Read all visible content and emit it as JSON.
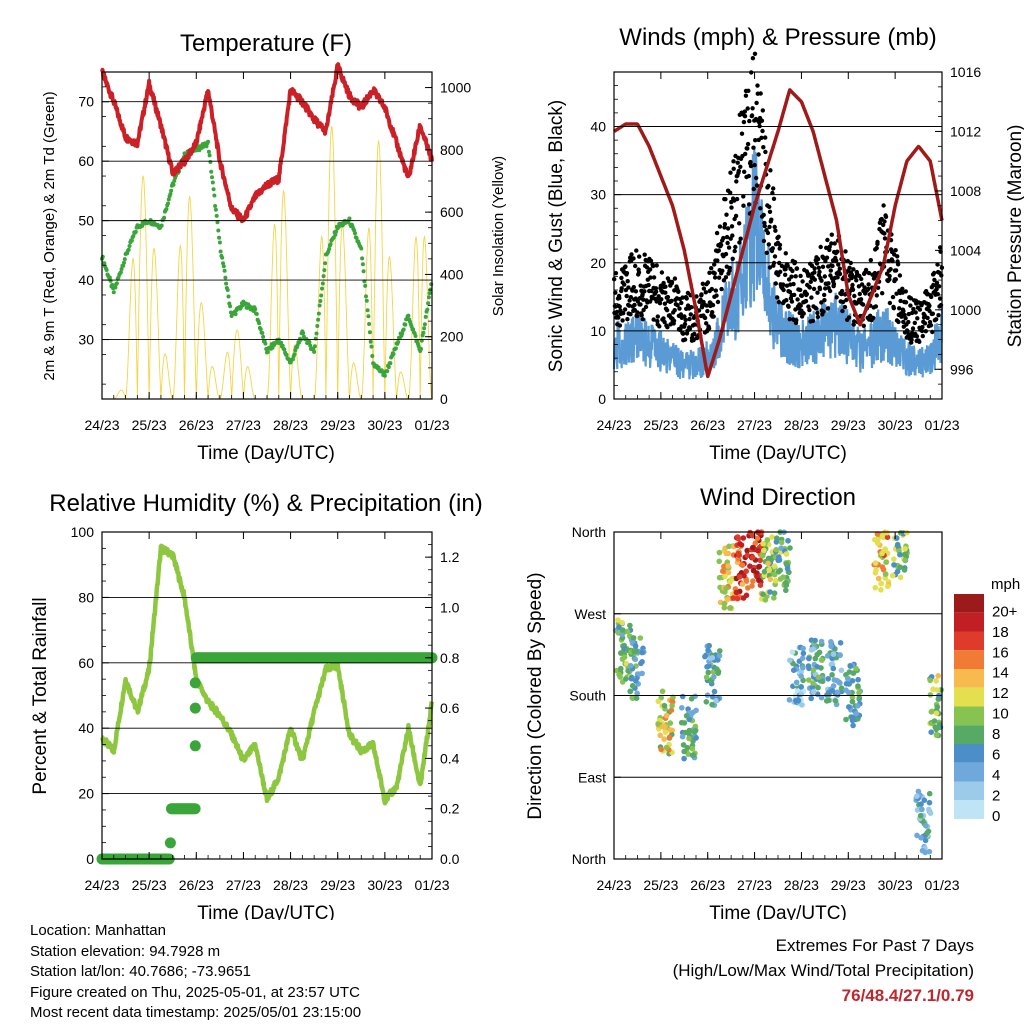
{
  "x_tick_labels": [
    "24/23",
    "25/23",
    "26/23",
    "27/23",
    "28/23",
    "29/23",
    "30/23",
    "01/23"
  ],
  "panels": {
    "temperature": {
      "title": "Temperature (F)",
      "xlabel": "Time (Day/UTC)",
      "ylabel_left": "2m & 9m T (Red, Orange) & 2m Td (Green)",
      "ylabel_right": "Solar Insolation (Yellow)"
    },
    "winds": {
      "title": "Winds (mph) & Pressure (mb)",
      "xlabel": "Time (Day/UTC)",
      "ylabel_left": "Sonic Wind & Gust (Blue, Black)",
      "ylabel_right": "Station Pressure (Maroon)"
    },
    "humidity": {
      "title": "Relative Humidity (%) & Precipitation (in)",
      "xlabel": "Time (Day/UTC)",
      "ylabel_left": "Percent & Total Rainfall"
    },
    "direction": {
      "title": "Wind Direction",
      "xlabel": "Time (Day/UTC)",
      "ylabel_left": "Direction (Colored By Speed)",
      "colorbar_title": "mph",
      "colorbar_labels": [
        "20+",
        "18",
        "16",
        "14",
        "12",
        "10",
        "8",
        "6",
        "4",
        "2",
        "0"
      ]
    }
  },
  "colors": {
    "temp_red": "#cc2027",
    "dewpoint_green": "#3aa63a",
    "solar_yellow": "#f5d547",
    "wind_blue": "#5b9bd5",
    "gust_black": "#000000",
    "pressure_maroon": "#a11a1a",
    "rh_lightgreen": "#8dc63f",
    "precip_green": "#3aa63a",
    "speed_scale": [
      "#bfe4f5",
      "#9ccbea",
      "#6fa9db",
      "#4c8ec7",
      "#57aa63",
      "#86c351",
      "#e3df4f",
      "#f6ba4f",
      "#f17a35",
      "#de3b2a",
      "#c11f24",
      "#9c1a1a"
    ]
  },
  "chart_data": [
    {
      "type": "line",
      "title": "Temperature (F)",
      "xlabel": "Time (Day/UTC)",
      "ylabel": "2m & 9m T (Red, Orange) & 2m Td (Green)",
      "y2label": "Solar Insolation (Yellow)",
      "x_ticks": [
        "24/23",
        "25/23",
        "26/23",
        "27/23",
        "28/23",
        "29/23",
        "30/23",
        "01/23"
      ],
      "ylim": [
        20,
        75
      ],
      "y_ticks": [
        30,
        40,
        50,
        60,
        70
      ],
      "y2lim": [
        0,
        1050
      ],
      "y2_ticks": [
        0,
        200,
        400,
        600,
        800,
        1000
      ],
      "x": [
        0,
        0.25,
        0.5,
        0.75,
        1,
        1.25,
        1.5,
        1.75,
        2,
        2.25,
        2.5,
        2.75,
        3,
        3.25,
        3.5,
        3.75,
        4,
        4.25,
        4.5,
        4.75,
        5,
        5.25,
        5.5,
        5.75,
        6,
        6.25,
        6.5,
        6.75,
        7
      ],
      "series": [
        {
          "name": "2m & 9m T",
          "values": [
            75,
            70,
            64,
            63,
            73,
            66,
            58,
            60,
            63,
            72,
            60,
            52,
            50,
            54,
            56,
            57,
            72,
            70,
            67,
            65,
            76,
            71,
            69,
            72,
            69,
            63,
            57,
            66,
            60
          ]
        },
        {
          "name": "2m Td",
          "values": [
            44,
            38,
            44,
            49,
            50,
            49,
            56,
            61,
            62,
            63,
            46,
            34,
            36,
            35,
            28,
            30,
            26,
            31,
            28,
            44,
            49,
            50,
            45,
            26,
            24,
            29,
            34,
            28,
            40
          ]
        },
        {
          "name": "Solar Insolation",
          "values": [
            0,
            0,
            50,
            750,
            680,
            250,
            0,
            850,
            420,
            180,
            0,
            260,
            180,
            0,
            0,
            970,
            300,
            0,
            0,
            900,
            850,
            200,
            0,
            950,
            700,
            150,
            0,
            900,
            0
          ]
        }
      ]
    },
    {
      "type": "line",
      "title": "Winds (mph) & Pressure (mb)",
      "xlabel": "Time (Day/UTC)",
      "ylabel": "Sonic Wind & Gust (Blue, Black)",
      "y2label": "Station Pressure (Maroon)",
      "x_ticks": [
        "24/23",
        "25/23",
        "26/23",
        "27/23",
        "28/23",
        "29/23",
        "30/23",
        "01/23"
      ],
      "ylim": [
        0,
        48
      ],
      "y_ticks": [
        0,
        10,
        20,
        30,
        40
      ],
      "y2lim": [
        994,
        1016
      ],
      "y2_ticks": [
        996,
        1000,
        1004,
        1008,
        1012,
        1016
      ],
      "x": [
        0,
        0.25,
        0.5,
        0.75,
        1,
        1.25,
        1.5,
        1.75,
        2,
        2.25,
        2.5,
        2.75,
        3,
        3.25,
        3.5,
        3.75,
        4,
        4.25,
        4.5,
        4.75,
        5,
        5.25,
        5.5,
        5.75,
        6,
        6.25,
        6.5,
        6.75,
        7
      ],
      "series": [
        {
          "name": "Sonic Wind",
          "values": [
            8,
            8,
            9,
            8,
            7,
            6,
            5,
            5,
            6,
            10,
            14,
            18,
            26,
            17,
            11,
            9,
            8,
            9,
            10,
            11,
            9,
            7,
            8,
            10,
            8,
            6,
            5,
            6,
            10
          ]
        },
        {
          "name": "Gust",
          "values": [
            14,
            16,
            17,
            16,
            15,
            14,
            12,
            12,
            14,
            20,
            28,
            34,
            40,
            30,
            20,
            16,
            15,
            16,
            18,
            19,
            16,
            14,
            16,
            22,
            17,
            12,
            11,
            13,
            18
          ]
        },
        {
          "name": "Station Pressure",
          "values": [
            1012,
            1012.5,
            1012.5,
            1011,
            1009,
            1007,
            1004,
            1000,
            995.5,
            998,
            1001,
            1004,
            1007,
            1009.5,
            1012,
            1014.8,
            1014,
            1012,
            1009,
            1006,
            1001,
            999,
            1001,
            1003,
            1007,
            1010,
            1011,
            1010,
            1006
          ]
        }
      ]
    },
    {
      "type": "line",
      "title": "Relative Humidity (%) & Precipitation (in)",
      "xlabel": "Time (Day/UTC)",
      "ylabel": "Percent & Total Rainfall",
      "x_ticks": [
        "24/23",
        "25/23",
        "26/23",
        "27/23",
        "28/23",
        "29/23",
        "30/23",
        "01/23"
      ],
      "ylim": [
        0,
        100
      ],
      "y_ticks": [
        0,
        20,
        40,
        60,
        80,
        100
      ],
      "y2lim": [
        0,
        1.3
      ],
      "y2_ticks": [
        0.0,
        0.2,
        0.4,
        0.6,
        0.8,
        1.0,
        1.2
      ],
      "x": [
        0,
        0.25,
        0.5,
        0.75,
        1,
        1.25,
        1.5,
        1.75,
        2,
        2.25,
        2.5,
        2.75,
        3,
        3.25,
        3.5,
        3.75,
        4,
        4.25,
        4.5,
        4.75,
        5,
        5.25,
        5.5,
        5.75,
        6,
        6.25,
        6.5,
        6.75,
        7
      ],
      "series": [
        {
          "name": "Relative Humidity",
          "values": [
            37,
            33,
            55,
            45,
            58,
            95,
            93,
            80,
            55,
            48,
            44,
            38,
            30,
            35,
            18,
            25,
            40,
            30,
            45,
            58,
            59,
            38,
            33,
            35,
            18,
            22,
            40,
            22,
            48
          ]
        },
        {
          "name": "Total Precipitation",
          "values": [
            0,
            0,
            0,
            0,
            0,
            0,
            0.08,
            0.2,
            0.8,
            0.8,
            0.8,
            0.8,
            0.8,
            0.8,
            0.8,
            0.8,
            0.8,
            0.8,
            0.8,
            0.8,
            0.8,
            0.8,
            0.8,
            0.8,
            0.8,
            0.8,
            0.8,
            0.8,
            0.8
          ]
        }
      ]
    },
    {
      "type": "scatter",
      "title": "Wind Direction",
      "xlabel": "Time (Day/UTC)",
      "ylabel": "Direction (Colored By Speed)",
      "x_ticks": [
        "24/23",
        "25/23",
        "26/23",
        "27/23",
        "28/23",
        "29/23",
        "30/23",
        "01/23"
      ],
      "y_tick_labels": [
        "North",
        "East",
        "South",
        "West",
        "North"
      ],
      "ylim": [
        0,
        360
      ],
      "colorbar": {
        "title": "mph",
        "labels": [
          "20+",
          "18",
          "16",
          "14",
          "12",
          "10",
          "8",
          "6",
          "4",
          "2",
          "0"
        ]
      },
      "clusters": [
        {
          "day": 0.2,
          "direction": 230,
          "speed": 8
        },
        {
          "day": 0.5,
          "direction": 210,
          "speed": 7
        },
        {
          "day": 1.1,
          "direction": 150,
          "speed": 12
        },
        {
          "day": 1.6,
          "direction": 145,
          "speed": 7
        },
        {
          "day": 2.1,
          "direction": 200,
          "speed": 6
        },
        {
          "day": 2.4,
          "direction": 310,
          "speed": 13
        },
        {
          "day": 2.7,
          "direction": 320,
          "speed": 18
        },
        {
          "day": 3.0,
          "direction": 335,
          "speed": 19
        },
        {
          "day": 3.3,
          "direction": 320,
          "speed": 10
        },
        {
          "day": 3.6,
          "direction": 330,
          "speed": 8
        },
        {
          "day": 3.9,
          "direction": 200,
          "speed": 4
        },
        {
          "day": 4.3,
          "direction": 210,
          "speed": 6
        },
        {
          "day": 4.7,
          "direction": 205,
          "speed": 5
        },
        {
          "day": 5.1,
          "direction": 180,
          "speed": 7
        },
        {
          "day": 5.7,
          "direction": 330,
          "speed": 14
        },
        {
          "day": 6.1,
          "direction": 340,
          "speed": 9
        },
        {
          "day": 6.6,
          "direction": 40,
          "speed": 5
        },
        {
          "day": 6.9,
          "direction": 170,
          "speed": 10
        }
      ]
    }
  ],
  "station_info": {
    "location": "Location: Manhattan",
    "elevation": "Station elevation: 94.7928 m",
    "latlon": "Station lat/lon: 40.7686; -73.9651",
    "created": "Figure created on Thu, 2025-05-01, at 23:57 UTC",
    "latest": "Most recent data timestamp: 2025/05/01 23:15:00"
  },
  "extremes": {
    "line1": "Extremes For Past 7 Days",
    "line2": "(High/Low/Max Wind/Total Precipitation)",
    "values": "76/48.4/27.1/0.79"
  }
}
